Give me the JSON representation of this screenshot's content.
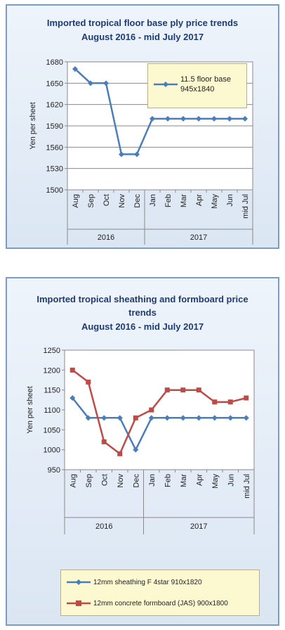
{
  "chart_data": [
    {
      "type": "line",
      "title": "Imported tropical floor base ply price trends",
      "subtitle": "August 2016 - mid July 2017",
      "ylabel": "Yen per sheet",
      "ylim": [
        1500,
        1680
      ],
      "yticks": [
        1500,
        1530,
        1560,
        1590,
        1620,
        1650,
        1680
      ],
      "categories": [
        "Aug",
        "Sep",
        "Oct",
        "Nov",
        "Dec",
        "Jan",
        "Feb",
        "Mar",
        "Apr",
        "May",
        "Jun",
        "mid Jul"
      ],
      "year_groups": [
        {
          "label": "2016",
          "count": 5
        },
        {
          "label": "2017",
          "count": 7
        }
      ],
      "grid": true,
      "legend_position": "top-right",
      "series": [
        {
          "name": "11.5 floor base 945x1840",
          "color": "#4a7ebb",
          "values": [
            1670,
            1650,
            1650,
            1550,
            1550,
            1600,
            1600,
            1600,
            1600,
            1600,
            1600,
            1600
          ]
        }
      ]
    },
    {
      "type": "line",
      "title": "Imported tropical sheathing and formboard price trends",
      "subtitle": "August 2016 - mid July 2017",
      "ylabel": "Yen per sheet",
      "ylim": [
        950,
        1250
      ],
      "yticks": [
        950,
        1000,
        1050,
        1100,
        1150,
        1200,
        1250
      ],
      "categories": [
        "Aug",
        "Sep",
        "Oct",
        "Nov",
        "Dec",
        "Jan",
        "Feb",
        "Mar",
        "Apr",
        "May",
        "Jun",
        "mid Jul"
      ],
      "year_groups": [
        {
          "label": "2016",
          "count": 5
        },
        {
          "label": "2017",
          "count": 7
        }
      ],
      "grid": false,
      "legend_position": "bottom",
      "series": [
        {
          "name": "12mm sheathing F 4star 910x1820",
          "color": "#4a7ebb",
          "values": [
            1130,
            1080,
            1080,
            1080,
            1000,
            1080,
            1080,
            1080,
            1080,
            1080,
            1080,
            1080
          ]
        },
        {
          "name": "12mm concrete formboard (JAS) 900x1800",
          "color": "#be4b48",
          "values": [
            1200,
            1170,
            1020,
            990,
            1080,
            1100,
            1150,
            1150,
            1150,
            1120,
            1120,
            1130
          ]
        }
      ]
    }
  ]
}
